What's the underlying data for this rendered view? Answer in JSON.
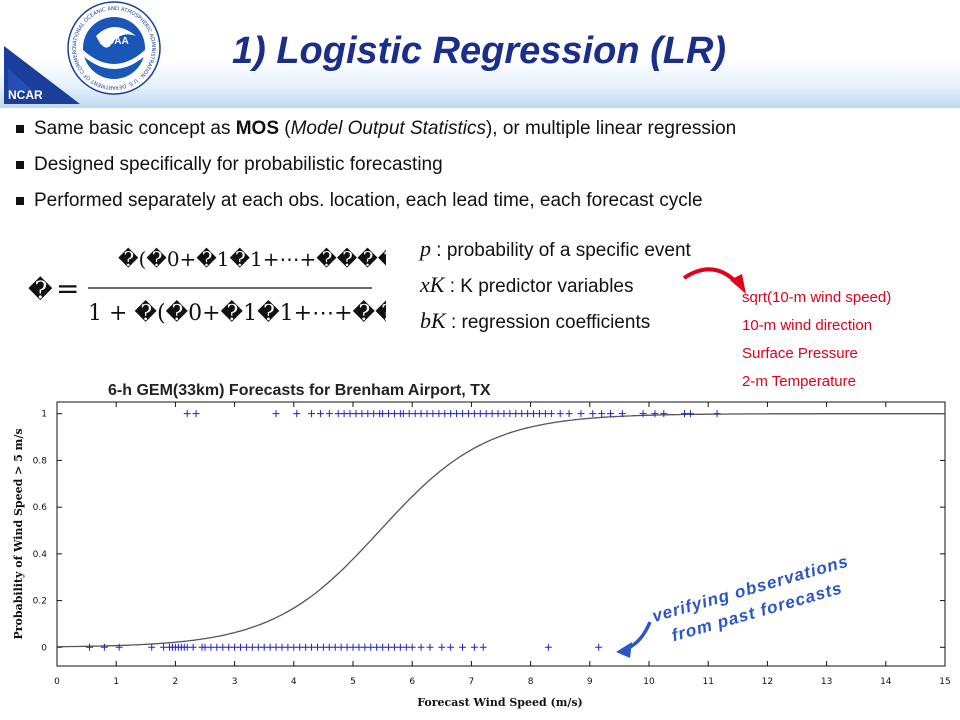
{
  "header": {
    "title": "1) Logistic Regression (LR)",
    "ncar_label": "NCAR",
    "noaa_label": "NOAA",
    "noaa_ring_text": "NATIONAL OCEANIC AND ATMOSPHERIC ADMINISTRATION · U.S. DEPARTMENT OF COMMERCE"
  },
  "bullets": [
    {
      "parts": [
        {
          "t": "Same basic concept as ",
          "s": "n"
        },
        {
          "t": "MOS",
          "s": "b"
        },
        {
          "t": " (",
          "s": "n"
        },
        {
          "t": "Model Output Statistics",
          "s": "i"
        },
        {
          "t": "), or multiple linear regression",
          "s": "n"
        }
      ]
    },
    {
      "parts": [
        {
          "t": "Designed specifically for probabilistic forecasting",
          "s": "n"
        }
      ]
    },
    {
      "parts": [
        {
          "t": "Performed separately at each obs. location, each lead time, each forecast cycle",
          "s": "n"
        }
      ]
    }
  ],
  "formula": {
    "lhs": "�",
    "equals": "=",
    "numerator": "�(�0+�1�1+⋯+����)",
    "denominator": "1 + �(�0+�1�1+⋯+����)"
  },
  "definitions": [
    {
      "symbol": "p",
      "text": ": probability of a specific event"
    },
    {
      "symbol": "xK",
      "text": ": K predictor variables"
    },
    {
      "symbol": "bK",
      "text": ": regression coefficients"
    }
  ],
  "predictors": [
    "sqrt(10-m wind speed)",
    "10-m wind direction",
    "Surface Pressure",
    "2-m Temperature"
  ],
  "annotation": {
    "line1": "verifying observations",
    "line2": "from past forecasts"
  },
  "colors": {
    "title": "#1a2e8a",
    "obs_marker": "#2222cc",
    "curve": "#555555",
    "annotation": "#2a56c6",
    "predictors": "#e3001b"
  },
  "chart_data": {
    "type": "scatter",
    "title": "6-h GEM(33km) Forecasts for Brenham Airport, TX",
    "xlabel": "Forecast Wind Speed (m/s)",
    "ylabel": "Probability of Wind Speed > 5 m/s",
    "xlim": [
      0,
      15
    ],
    "ylim": [
      -0.08,
      1.05
    ],
    "xticks": [
      "0",
      "1",
      "2",
      "3",
      "4",
      "5",
      "6",
      "7",
      "8",
      "9",
      "10",
      "11",
      "12",
      "13",
      "14",
      "15"
    ],
    "yticks": [
      "0",
      "0.2",
      "0.4",
      "0.6",
      "0.8",
      "1"
    ],
    "grid": false,
    "logistic_fit": {
      "b0": -6.0,
      "b1": 1.1,
      "xmin": 0,
      "xmax": 15
    },
    "series": [
      {
        "marker": "+",
        "y": 1,
        "x": [
          2.2,
          2.35,
          3.7,
          4.05,
          4.3,
          4.45,
          4.6,
          4.75,
          4.85,
          4.95,
          5.05,
          5.15,
          5.25,
          5.35,
          5.45,
          5.5,
          5.6,
          5.7,
          5.8,
          5.85,
          5.95,
          6.05,
          6.15,
          6.25,
          6.35,
          6.45,
          6.55,
          6.65,
          6.75,
          6.85,
          6.95,
          7.05,
          7.15,
          7.25,
          7.35,
          7.45,
          7.55,
          7.65,
          7.75,
          7.85,
          7.95,
          8.05,
          8.15,
          8.25,
          8.35,
          8.5,
          8.65,
          8.85,
          9.05,
          9.2,
          9.35,
          9.55,
          9.9,
          10.1,
          10.25,
          10.6,
          10.7,
          11.15
        ]
      },
      {
        "marker": "+",
        "y": 0,
        "x": [
          0.55,
          0.8,
          1.05,
          1.6,
          1.8,
          1.9,
          1.95,
          2.0,
          2.05,
          2.1,
          2.15,
          2.2,
          2.3,
          2.45,
          2.5,
          2.6,
          2.7,
          2.8,
          2.9,
          3.0,
          3.1,
          3.2,
          3.3,
          3.4,
          3.5,
          3.6,
          3.7,
          3.8,
          3.9,
          4.0,
          4.1,
          4.2,
          4.3,
          4.4,
          4.5,
          4.6,
          4.7,
          4.8,
          4.9,
          5.0,
          5.1,
          5.2,
          5.3,
          5.4,
          5.5,
          5.6,
          5.7,
          5.8,
          5.9,
          6.0,
          6.15,
          6.3,
          6.5,
          6.65,
          6.85,
          7.05,
          7.2,
          8.3,
          9.15
        ]
      }
    ]
  }
}
